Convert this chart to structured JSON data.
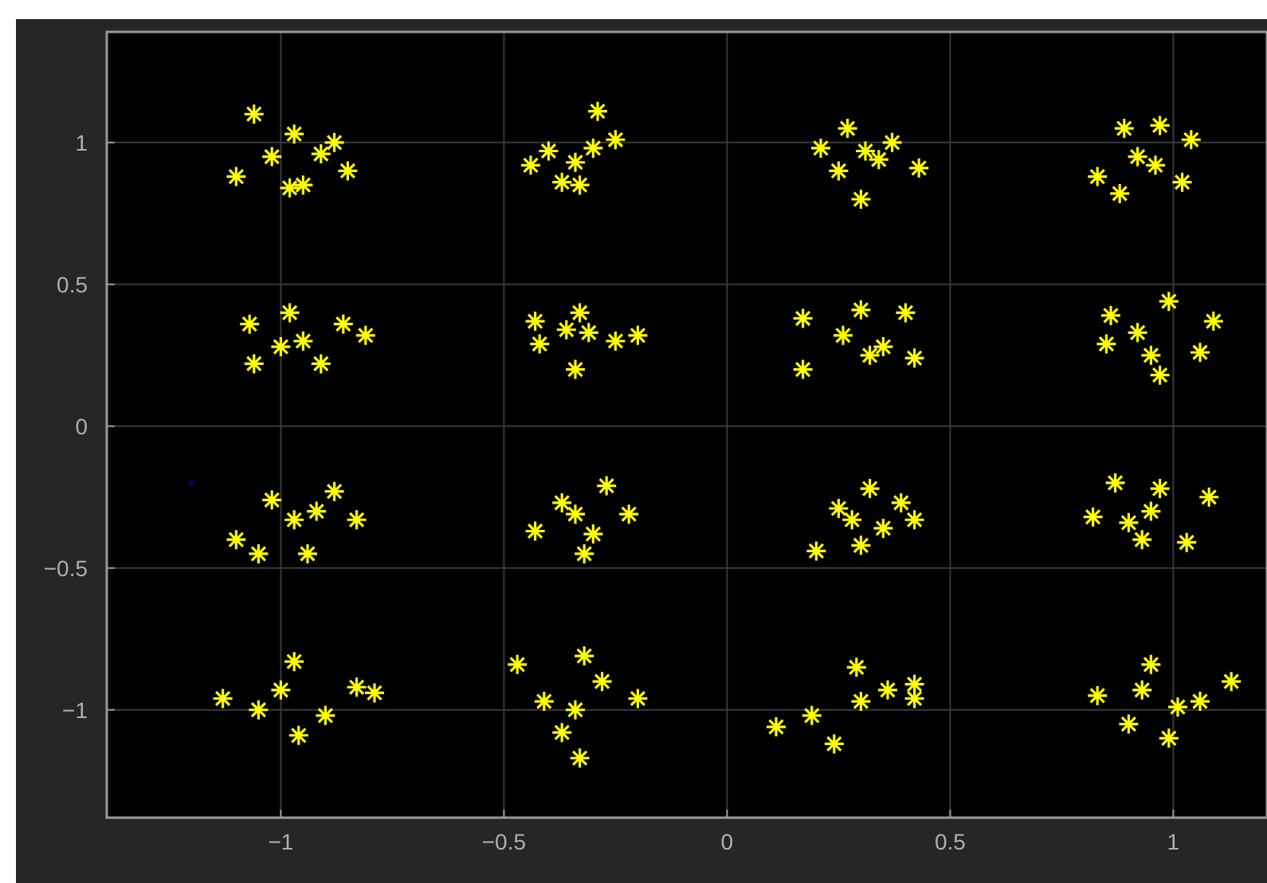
{
  "chart_data": {
    "type": "scatter",
    "xlim": [
      -1.39,
      1.21
    ],
    "ylim": [
      -1.38,
      1.39
    ],
    "xticks": [
      -1,
      -0.5,
      0,
      0.5,
      1
    ],
    "yticks": [
      -1,
      -0.5,
      0,
      0.5,
      1
    ],
    "grid": true,
    "marker": "cross",
    "series": [
      {
        "color": "#ffff00",
        "x": [
          -1.06,
          -0.97,
          -1.1,
          -0.85,
          -0.95,
          -1.02,
          -0.91,
          -0.98,
          -0.88,
          -0.29,
          -0.44,
          -0.37,
          -0.3,
          -0.25,
          -0.33,
          -0.4,
          -0.34,
          0.27,
          0.21,
          0.43,
          0.3,
          0.34,
          0.25,
          0.37,
          0.31,
          0.83,
          0.97,
          1.04,
          0.88,
          1.02,
          0.92,
          0.96,
          0.89,
          -1.07,
          -1.06,
          -0.98,
          -0.86,
          -0.81,
          -0.91,
          -0.95,
          -1.0,
          -0.43,
          -0.42,
          -0.33,
          -0.34,
          -0.2,
          -0.25,
          -0.31,
          -0.36,
          0.17,
          0.17,
          0.3,
          0.4,
          0.42,
          0.35,
          0.26,
          0.32,
          0.86,
          0.99,
          1.09,
          0.85,
          0.97,
          1.06,
          0.92,
          0.95,
          -1.02,
          -0.88,
          -1.1,
          -1.05,
          -0.94,
          -0.83,
          -0.97,
          -0.92,
          -0.43,
          -0.27,
          -0.32,
          -0.22,
          -0.37,
          -0.3,
          -0.34,
          0.2,
          0.32,
          0.39,
          0.42,
          0.25,
          0.3,
          0.28,
          0.35,
          0.87,
          0.97,
          1.08,
          0.82,
          1.03,
          0.93,
          0.95,
          0.9,
          -1.13,
          -0.97,
          -0.83,
          -0.79,
          -0.96,
          -1.05,
          -0.9,
          -1.0,
          -0.47,
          -0.32,
          -0.33,
          -0.37,
          -0.41,
          -0.2,
          -0.28,
          -0.34,
          0.11,
          0.24,
          0.19,
          0.29,
          0.42,
          0.42,
          0.3,
          0.36,
          0.83,
          1.13,
          0.9,
          0.99,
          1.06,
          0.95,
          0.93,
          1.01
        ],
        "values": [
          1.1,
          1.03,
          0.88,
          0.9,
          0.85,
          0.95,
          0.96,
          0.84,
          1.0,
          1.11,
          0.92,
          0.86,
          0.98,
          1.01,
          0.85,
          0.97,
          0.93,
          1.05,
          0.98,
          0.91,
          0.8,
          0.94,
          0.9,
          1.0,
          0.97,
          0.88,
          1.06,
          1.01,
          0.82,
          0.86,
          0.95,
          0.92,
          1.05,
          0.36,
          0.22,
          0.4,
          0.36,
          0.32,
          0.22,
          0.3,
          0.28,
          0.37,
          0.29,
          0.4,
          0.2,
          0.32,
          0.3,
          0.33,
          0.34,
          0.38,
          0.2,
          0.41,
          0.4,
          0.24,
          0.28,
          0.32,
          0.25,
          0.39,
          0.44,
          0.37,
          0.29,
          0.18,
          0.26,
          0.33,
          0.25,
          -0.26,
          -0.23,
          -0.4,
          -0.45,
          -0.45,
          -0.33,
          -0.33,
          -0.3,
          -0.37,
          -0.21,
          -0.45,
          -0.31,
          -0.27,
          -0.38,
          -0.31,
          -0.44,
          -0.22,
          -0.27,
          -0.33,
          -0.29,
          -0.42,
          -0.33,
          -0.36,
          -0.2,
          -0.22,
          -0.25,
          -0.32,
          -0.41,
          -0.4,
          -0.3,
          -0.34,
          -0.96,
          -0.83,
          -0.92,
          -0.94,
          -1.09,
          -1.0,
          -1.02,
          -0.93,
          -0.84,
          -0.81,
          -1.17,
          -1.08,
          -0.97,
          -0.96,
          -0.9,
          -1.0,
          -1.06,
          -1.12,
          -1.02,
          -0.85,
          -0.91,
          -0.96,
          -0.97,
          -0.93,
          -0.95,
          -0.9,
          -1.05,
          -1.1,
          -0.97,
          -0.84,
          -0.93,
          -0.99
        ]
      },
      {
        "color": "#00008b",
        "marker": "circle",
        "x": [
          -1.2
        ],
        "values": [
          -0.2
        ]
      }
    ]
  }
}
